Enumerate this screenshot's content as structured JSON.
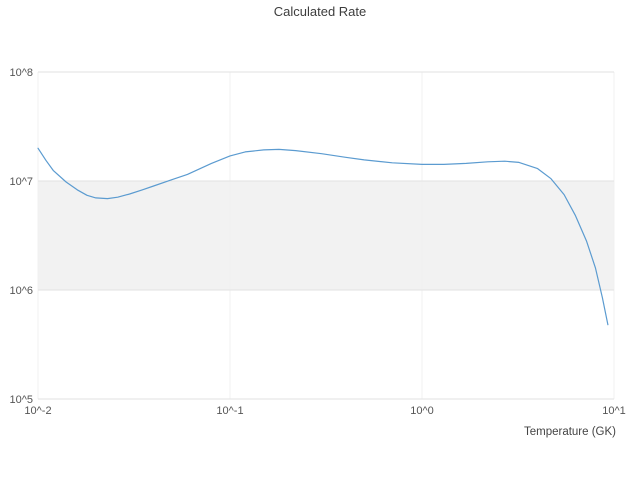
{
  "colors": {
    "line": "#5b9bd0",
    "grid": "#e2e2e2",
    "minor_grid": "#f0f0f0",
    "band": "#f2f2f2",
    "tick_text": "#555555",
    "title_text": "#3d3d3d",
    "axis_title_text": "#444444",
    "background": "#ffffff"
  },
  "chart_data": {
    "type": "line",
    "title": "Calculated Rate",
    "xlabel": "Temperature (GK)",
    "ylabel": "",
    "x_scale": "log",
    "y_scale": "log",
    "xlim": [
      0.01,
      10
    ],
    "ylim": [
      100000,
      100000000
    ],
    "grid": true,
    "legend": "none",
    "x_ticks": [
      {
        "value": 0.01,
        "label": "10^-2"
      },
      {
        "value": 0.1,
        "label": "10^-1"
      },
      {
        "value": 1,
        "label": "10^0"
      },
      {
        "value": 10,
        "label": "10^1"
      }
    ],
    "y_ticks": [
      {
        "value": 100000,
        "label": "10^5"
      },
      {
        "value": 1000000,
        "label": "10^6"
      },
      {
        "value": 10000000,
        "label": "10^7"
      },
      {
        "value": 100000000,
        "label": "10^8"
      }
    ],
    "highlight_band": {
      "y0": 1000000,
      "y1": 10000000
    },
    "series": [
      {
        "name": "Calculated Rate",
        "x": [
          0.01,
          0.011,
          0.012,
          0.014,
          0.016,
          0.018,
          0.02,
          0.023,
          0.026,
          0.03,
          0.035,
          0.04,
          0.05,
          0.06,
          0.08,
          0.1,
          0.12,
          0.15,
          0.18,
          0.22,
          0.3,
          0.4,
          0.5,
          0.7,
          1.0,
          1.3,
          1.7,
          2.2,
          2.7,
          3.2,
          4.0,
          4.7,
          5.5,
          6.3,
          7.2,
          8.0,
          8.7,
          9.3
        ],
        "y": [
          20000000.0,
          15500000.0,
          12500000.0,
          9800000.0,
          8300000.0,
          7400000.0,
          7000000.0,
          6900000.0,
          7100000.0,
          7600000.0,
          8300000.0,
          9000000.0,
          10300000.0,
          11500000.0,
          14500000.0,
          17000000.0,
          18500000.0,
          19300000.0,
          19500000.0,
          19000000.0,
          17800000.0,
          16500000.0,
          15600000.0,
          14700000.0,
          14200000.0,
          14200000.0,
          14500000.0,
          15000000.0,
          15200000.0,
          14800000.0,
          13000000.0,
          10500000.0,
          7500000.0,
          4800000.0,
          2800000.0,
          1600000.0,
          850000.0,
          480000.0
        ]
      }
    ]
  }
}
